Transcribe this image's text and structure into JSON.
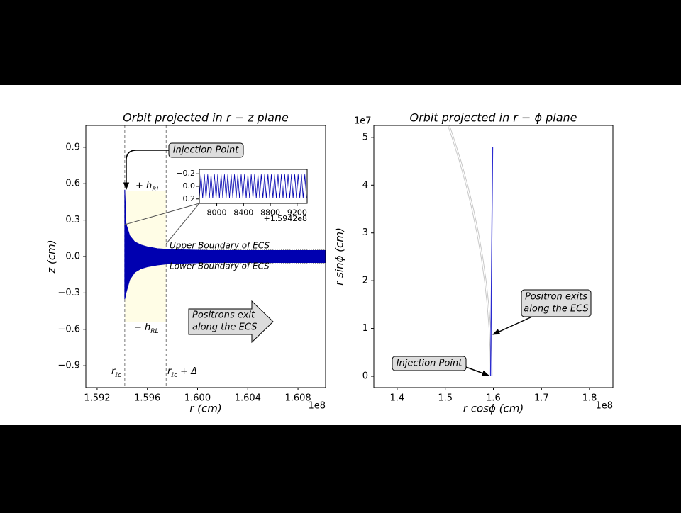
{
  "chart_data": [
    {
      "type": "band",
      "title": "Orbit projected in r − z plane",
      "x_label": "r (cm)",
      "y_label": "z (cm)",
      "x_offset": "1e8",
      "xlim": [
        1.5911,
        1.6102
      ],
      "ylim": [
        -1.08,
        1.08
      ],
      "xticks": [
        1.592,
        1.596,
        {
          "value": 1.6,
          "label": "1.600"
        },
        1.604,
        1.608
      ],
      "yticks": [
        {
          "value": -0.9,
          "label": "−0.9"
        },
        {
          "value": -0.6,
          "label": "−0.6"
        },
        {
          "value": -0.3,
          "label": "−0.3"
        },
        {
          "value": 0,
          "label": "0.0"
        },
        0.3,
        0.6,
        0.9
      ],
      "series": [
        {
          "color": "#0000b0",
          "x": [
            1.5942,
            1.5943,
            1.5946,
            1.595,
            1.5955,
            1.596,
            1.5968,
            1.5975,
            1.599,
            1.601,
            1.6102
          ],
          "upper": [
            0.55,
            0.27,
            0.17,
            0.12,
            0.095,
            0.08,
            0.065,
            0.06,
            0.055,
            0.05,
            0.05
          ],
          "lower": [
            -0.35,
            -0.3,
            -0.19,
            -0.13,
            -0.1,
            -0.085,
            -0.07,
            -0.062,
            -0.055,
            -0.05,
            -0.05
          ]
        }
      ],
      "region": {
        "xlim": [
          1.5942,
          1.5975
        ],
        "ylim": [
          -0.54,
          0.54
        ],
        "color": "#fffde6"
      },
      "ecs_boundaries": [
        0.055,
        -0.055
      ],
      "labels": {
        "h_plus": {
          "main": "+ h",
          "sub": "RL"
        },
        "h_minus": {
          "main": "− h",
          "sub": "RL"
        },
        "r_lc": {
          "main": "r",
          "sub": "ℓc"
        },
        "r_lc_delta": {
          "main": "r",
          "sub": "ℓc",
          "tail": " + Δ"
        },
        "upper_boundary": "Upper Boundary of ECS",
        "lower_boundary": "Lower Boundary of ECS"
      },
      "annotations": [
        {
          "text": [
            "Injection Point"
          ]
        },
        {
          "text": [
            "Positrons exit",
            "along the ECS"
          ]
        }
      ],
      "inset": {
        "type": "line",
        "x_offset": "+1.5942e8",
        "xlim": [
          7740,
          9350
        ],
        "ylim": [
          0.27,
          -0.27
        ],
        "xticks": [
          8000,
          8400,
          8800,
          9200
        ],
        "yticks": [
          {
            "value": -0.2,
            "label": "−0.2"
          },
          {
            "value": 0,
            "label": "0.0"
          },
          0.2
        ],
        "series": [
          {
            "color": "#0000b0",
            "x": [
              7740,
              7765,
              7790,
              7815,
              7840,
              7865,
              7890,
              7915,
              7940,
              7965,
              7990,
              8015,
              8040,
              8065,
              8090,
              8115,
              8140,
              8165,
              8190,
              8215,
              8240,
              8265,
              8290,
              8315,
              8340,
              8365,
              8390,
              8415,
              8440,
              8465,
              8490,
              8515,
              8540,
              8565,
              8590,
              8615,
              8640,
              8665,
              8690,
              8715,
              8740,
              8765,
              8790,
              8815,
              8840,
              8865,
              8890,
              8915,
              8940,
              8965,
              8990,
              9015,
              9040,
              9065,
              9090,
              9115,
              9140,
              9165,
              9190,
              9215,
              9240,
              9265,
              9290,
              9315,
              9340
            ],
            "values": [
              0.19,
              -0.19,
              0.19,
              -0.19,
              0.19,
              -0.19,
              0.19,
              -0.19,
              0.19,
              -0.19,
              0.19,
              -0.19,
              0.19,
              -0.19,
              0.19,
              -0.19,
              0.19,
              -0.19,
              0.19,
              -0.19,
              0.19,
              -0.19,
              0.19,
              -0.19,
              0.19,
              -0.19,
              0.19,
              -0.19,
              0.19,
              -0.19,
              0.19,
              -0.19,
              0.19,
              -0.19,
              0.19,
              -0.19,
              0.19,
              -0.19,
              0.19,
              -0.19,
              0.19,
              -0.19,
              0.19,
              -0.19,
              0.19,
              -0.19,
              0.19,
              -0.19,
              0.19,
              -0.19,
              0.19,
              -0.19,
              0.19,
              -0.19,
              0.19,
              -0.19,
              0.19,
              -0.19,
              0.19,
              -0.19,
              0.19,
              -0.19,
              0.19,
              -0.19,
              0.19
            ]
          }
        ]
      }
    },
    {
      "type": "line",
      "title": "Orbit projected in r − ϕ plane",
      "x_label": "r cosϕ (cm)",
      "y_label": "r sinϕ (cm)",
      "x_offset": "1e8",
      "y_offset": "1e7",
      "xlim": [
        1.3515,
        1.8485
      ],
      "ylim": [
        -0.237,
        5.25
      ],
      "xticks": [
        1.4,
        1.5,
        1.6,
        1.7,
        1.8
      ],
      "yticks": [
        0,
        1,
        2,
        3,
        4,
        5
      ],
      "series": [
        {
          "color": "#c8c8c8",
          "x": [
            1.5942,
            1.5934,
            1.5911,
            1.5871,
            1.5816,
            1.5745,
            1.5657,
            1.5553,
            1.5432,
            1.5294,
            1.5138,
            1.5053
          ],
          "values": [
            0,
            0.5,
            1,
            1.5,
            2,
            2.5,
            3,
            3.5,
            4,
            4.5,
            5,
            5.25
          ]
        },
        {
          "color": "#c8c8c8",
          "x": [
            1.5975,
            1.5967,
            1.5944,
            1.5904,
            1.5849,
            1.5778,
            1.5691,
            1.5587,
            1.5466,
            1.5328,
            1.5172,
            1.5088
          ],
          "values": [
            0,
            0.5,
            1,
            1.5,
            2,
            2.5,
            3,
            3.5,
            4,
            4.5,
            5,
            5.25
          ]
        },
        {
          "color": "#2a2ad0",
          "x": [
            1.5942,
            1.595,
            1.5985
          ],
          "values": [
            0,
            0.9,
            4.8
          ]
        }
      ],
      "annotations": [
        {
          "text": [
            "Injection Point"
          ]
        },
        {
          "text": [
            "Positron exits",
            "along the ECS"
          ]
        }
      ]
    }
  ]
}
